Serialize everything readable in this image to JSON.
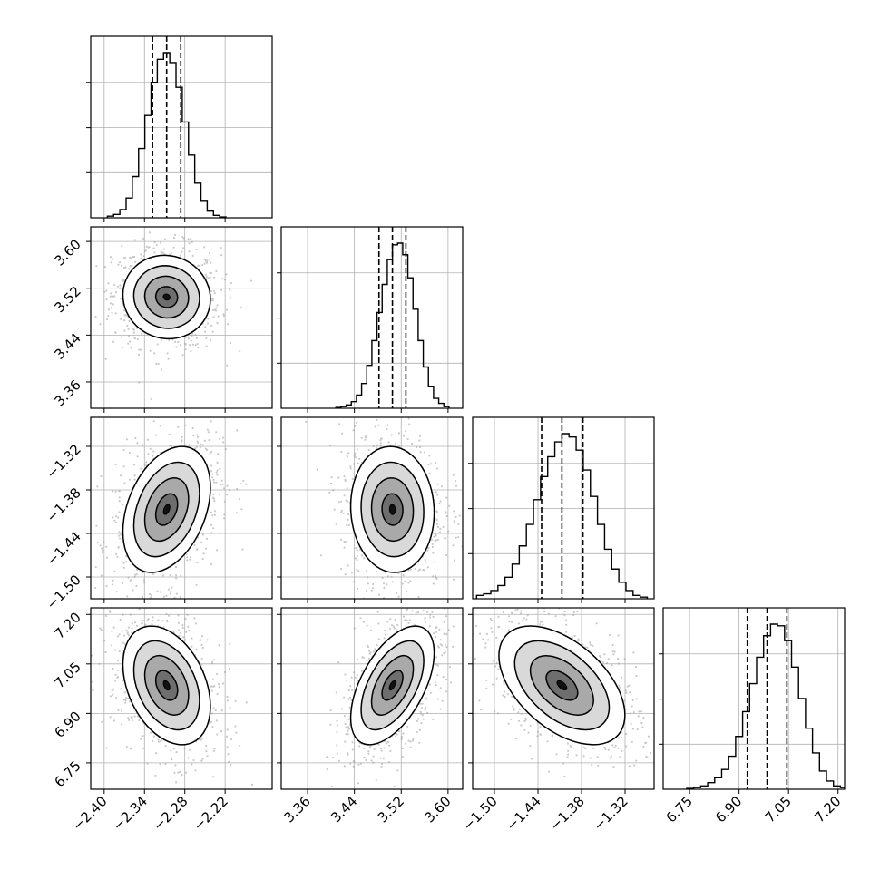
{
  "chart_data": {
    "type": "corner",
    "params": [
      {
        "median": -2.307,
        "q16": -2.328,
        "q84": -2.286,
        "sigma": 0.021,
        "range": [
          -2.42,
          -2.15
        ],
        "ticks": [
          "−2.40",
          "−2.34",
          "−2.28",
          "−2.22"
        ],
        "tick_values": [
          -2.4,
          -2.34,
          -2.28,
          -2.22
        ]
      },
      {
        "median": 3.505,
        "q16": 3.482,
        "q84": 3.528,
        "sigma": 0.023,
        "range": [
          3.315,
          3.625
        ],
        "ticks": [
          "3.36",
          "3.44",
          "3.52",
          "3.60"
        ],
        "tick_values": [
          3.36,
          3.44,
          3.52,
          3.6
        ]
      },
      {
        "median": -1.407,
        "q16": -1.435,
        "q84": -1.378,
        "sigma": 0.028,
        "range": [
          -1.53,
          -1.28
        ],
        "ticks": [
          "−1.50",
          "−1.44",
          "−1.38",
          "−1.32"
        ],
        "tick_values": [
          -1.5,
          -1.44,
          -1.38,
          -1.32
        ]
      },
      {
        "median": 6.985,
        "q16": 6.925,
        "q84": 7.045,
        "sigma": 0.058,
        "range": [
          6.67,
          7.22
        ],
        "ticks": [
          "6.75",
          "6.90",
          "7.05",
          "7.20"
        ],
        "tick_values": [
          6.75,
          6.9,
          7.05,
          7.2
        ]
      }
    ],
    "correlations": {
      "1,0": -0.05,
      "2,0": 0.35,
      "2,1": -0.05,
      "3,0": -0.35,
      "3,1": 0.55,
      "3,2": -0.5
    },
    "hist_relative_heights": [
      [
        0.01,
        0.02,
        0.05,
        0.12,
        0.25,
        0.42,
        0.62,
        0.82,
        0.96,
        1.0,
        0.94,
        0.79,
        0.58,
        0.38,
        0.21,
        0.1,
        0.04,
        0.015,
        0.005
      ],
      [
        0.005,
        0.01,
        0.02,
        0.04,
        0.08,
        0.15,
        0.26,
        0.41,
        0.58,
        0.75,
        0.9,
        0.99,
        1.0,
        0.93,
        0.79,
        0.6,
        0.41,
        0.25,
        0.13,
        0.06,
        0.03,
        0.01
      ],
      [
        0.02,
        0.03,
        0.05,
        0.08,
        0.13,
        0.21,
        0.32,
        0.45,
        0.6,
        0.74,
        0.86,
        0.95,
        1.0,
        0.98,
        0.9,
        0.78,
        0.62,
        0.45,
        0.3,
        0.18,
        0.1,
        0.05,
        0.02,
        0.01
      ],
      [
        0.005,
        0.01,
        0.02,
        0.04,
        0.07,
        0.12,
        0.2,
        0.32,
        0.47,
        0.64,
        0.8,
        0.93,
        1.0,
        0.99,
        0.9,
        0.74,
        0.55,
        0.37,
        0.22,
        0.11,
        0.05,
        0.02,
        0.01
      ]
    ],
    "contour_levels_sigma": [
      0.5,
      1.0,
      1.5,
      2.0
    ],
    "quantile_line_style": "dashed",
    "grid": true,
    "xlabel": "",
    "ylabel": ""
  },
  "colors": {
    "line": "#000000",
    "scatter": "#9e9e9e",
    "grid": "#b0b0b0"
  }
}
